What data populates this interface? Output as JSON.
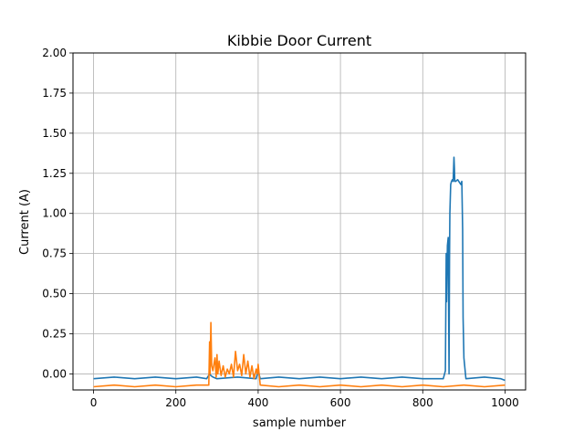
{
  "chart_data": {
    "type": "line",
    "title": "Kibbie Door Current",
    "xlabel": "sample number",
    "ylabel": "Current (A)",
    "xlim": [
      -50,
      1050
    ],
    "ylim": [
      -0.1,
      2.0
    ],
    "x_ticks": [
      0,
      200,
      400,
      600,
      800,
      1000
    ],
    "x_tick_labels": [
      "0",
      "200",
      "400",
      "600",
      "800",
      "1000"
    ],
    "y_ticks": [
      0.0,
      0.25,
      0.5,
      0.75,
      1.0,
      1.25,
      1.5,
      1.75,
      2.0
    ],
    "y_tick_labels": [
      "0.00",
      "0.25",
      "0.50",
      "0.75",
      "1.00",
      "1.25",
      "1.50",
      "1.75",
      "2.00"
    ],
    "grid": true,
    "series": [
      {
        "color": "#1f77b4",
        "x": [
          0,
          50,
          100,
          150,
          200,
          250,
          275,
          282,
          285,
          290,
          300,
          350,
          395,
          400,
          405,
          450,
          500,
          550,
          600,
          650,
          700,
          750,
          800,
          850,
          855,
          857,
          858,
          860,
          862,
          864,
          865,
          866,
          867,
          868,
          870,
          872,
          874,
          876,
          877,
          878,
          880,
          885,
          890,
          893,
          895,
          897,
          898,
          900,
          905,
          950,
          990,
          1000
        ],
        "y": [
          -0.03,
          -0.02,
          -0.03,
          -0.02,
          -0.03,
          -0.02,
          -0.03,
          0.0,
          -0.01,
          -0.02,
          -0.03,
          -0.02,
          -0.03,
          0.02,
          -0.03,
          -0.02,
          -0.03,
          -0.02,
          -0.03,
          -0.02,
          -0.03,
          -0.02,
          -0.03,
          -0.03,
          0.02,
          0.75,
          0.45,
          0.8,
          0.85,
          0.0,
          0.7,
          1.0,
          1.1,
          1.18,
          1.2,
          1.21,
          1.2,
          1.35,
          1.28,
          1.2,
          1.2,
          1.21,
          1.19,
          1.18,
          1.2,
          0.9,
          0.35,
          0.1,
          -0.03,
          -0.02,
          -0.03,
          -0.04
        ]
      },
      {
        "color": "#ff7f0e",
        "x": [
          0,
          50,
          100,
          150,
          200,
          250,
          280,
          282,
          283,
          285,
          287,
          290,
          295,
          298,
          300,
          302,
          305,
          310,
          315,
          320,
          325,
          330,
          335,
          340,
          345,
          350,
          355,
          360,
          365,
          370,
          375,
          380,
          385,
          390,
          395,
          398,
          400,
          405,
          450,
          500,
          550,
          600,
          650,
          700,
          750,
          800,
          850,
          900,
          950,
          1000
        ],
        "y": [
          -0.08,
          -0.07,
          -0.08,
          -0.07,
          -0.08,
          -0.07,
          -0.07,
          0.2,
          0.0,
          0.32,
          0.05,
          0.02,
          0.1,
          -0.02,
          0.12,
          0.0,
          0.08,
          -0.01,
          0.05,
          -0.02,
          0.03,
          0.0,
          0.06,
          -0.02,
          0.14,
          0.02,
          0.06,
          -0.01,
          0.12,
          0.0,
          0.08,
          -0.02,
          0.05,
          -0.03,
          0.03,
          0.0,
          0.06,
          -0.07,
          -0.08,
          -0.07,
          -0.08,
          -0.07,
          -0.08,
          -0.07,
          -0.08,
          -0.07,
          -0.08,
          -0.07,
          -0.08,
          -0.07
        ]
      }
    ]
  }
}
